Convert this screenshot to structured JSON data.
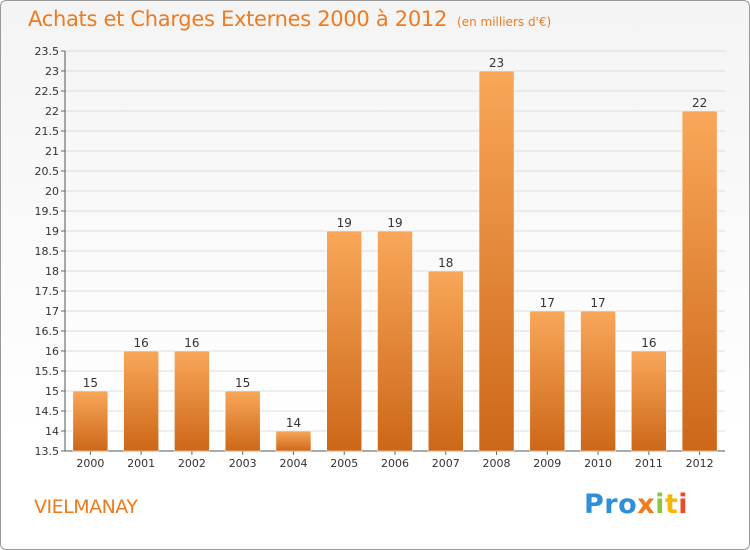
{
  "header": {
    "title": "Achats et Charges Externes 2000 à 2012",
    "subtitle": "(en milliers d'€)"
  },
  "footer": {
    "commune": "VIELMANAY",
    "logo": [
      "Pro",
      "x",
      "i",
      "t",
      "i"
    ]
  },
  "colors": {
    "accent": "#f07a1e",
    "bar_light": "#f9a75a",
    "bar_dark": "#cd6718",
    "grid": "#dddddd"
  },
  "chart_data": {
    "type": "bar",
    "categories": [
      "2000",
      "2001",
      "2002",
      "2003",
      "2004",
      "2005",
      "2006",
      "2007",
      "2008",
      "2009",
      "2010",
      "2011",
      "2012"
    ],
    "values": [
      15,
      16,
      16,
      15,
      14,
      19,
      19,
      18,
      23,
      17,
      17,
      16,
      22
    ],
    "data_labels": [
      "15",
      "16",
      "16",
      "15",
      "14",
      "19",
      "19",
      "18",
      "23",
      "17",
      "17",
      "16",
      "22"
    ],
    "title": "Achats et Charges Externes 2000 à 2012",
    "xlabel": "",
    "ylabel": "",
    "ylim": [
      13.5,
      23.5
    ],
    "yticks": [
      "13.5",
      "14",
      "14.5",
      "15",
      "15.5",
      "16",
      "16.5",
      "17",
      "17.5",
      "18",
      "18.5",
      "19",
      "19.5",
      "20",
      "20.5",
      "21",
      "21.5",
      "22",
      "22.5",
      "23",
      "23.5"
    ],
    "grid": true,
    "legend": "none"
  }
}
